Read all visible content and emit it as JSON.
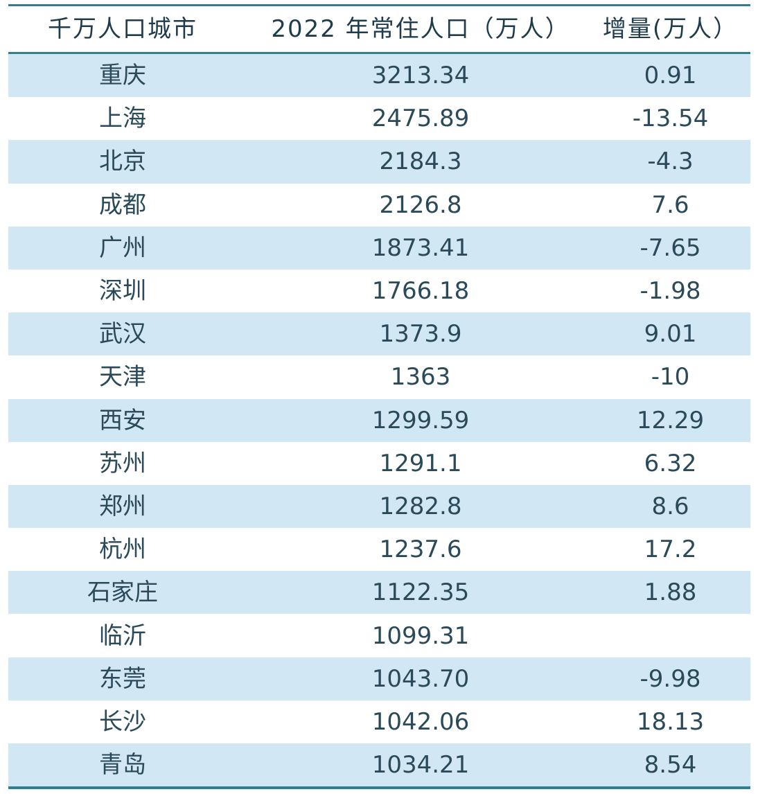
{
  "table": {
    "headers": [
      "千万人口城市",
      "2022 年常住人口（万人）",
      "增量(万人）"
    ],
    "rows": [
      {
        "city": "重庆",
        "population": "3213.34",
        "increase": "0.91"
      },
      {
        "city": "上海",
        "population": "2475.89",
        "increase": "-13.54"
      },
      {
        "city": "北京",
        "population": "2184.3",
        "increase": "-4.3"
      },
      {
        "city": "成都",
        "population": "2126.8",
        "increase": "7.6"
      },
      {
        "city": "广州",
        "population": "1873.41",
        "increase": "-7.65"
      },
      {
        "city": "深圳",
        "population": "1766.18",
        "increase": "-1.98"
      },
      {
        "city": "武汉",
        "population": "1373.9",
        "increase": "9.01"
      },
      {
        "city": "天津",
        "population": "1363",
        "increase": "-10"
      },
      {
        "city": "西安",
        "population": "1299.59",
        "increase": "12.29"
      },
      {
        "city": "苏州",
        "population": "1291.1",
        "increase": "6.32"
      },
      {
        "city": "郑州",
        "population": "1282.8",
        "increase": "8.6"
      },
      {
        "city": "杭州",
        "population": "1237.6",
        "increase": "17.2"
      },
      {
        "city": "石家庄",
        "population": "1122.35",
        "increase": "1.88"
      },
      {
        "city": "临沂",
        "population": "1099.31",
        "increase": ""
      },
      {
        "city": "东莞",
        "population": "1043.70",
        "increase": "-9.98"
      },
      {
        "city": "长沙",
        "population": "1042.06",
        "increase": "18.13"
      },
      {
        "city": "青岛",
        "population": "1034.21",
        "increase": "8.54"
      }
    ]
  },
  "colors": {
    "rule": "#2f7f8f",
    "shaded_row": "#d1e7f3",
    "text": "#2a4a5a"
  }
}
